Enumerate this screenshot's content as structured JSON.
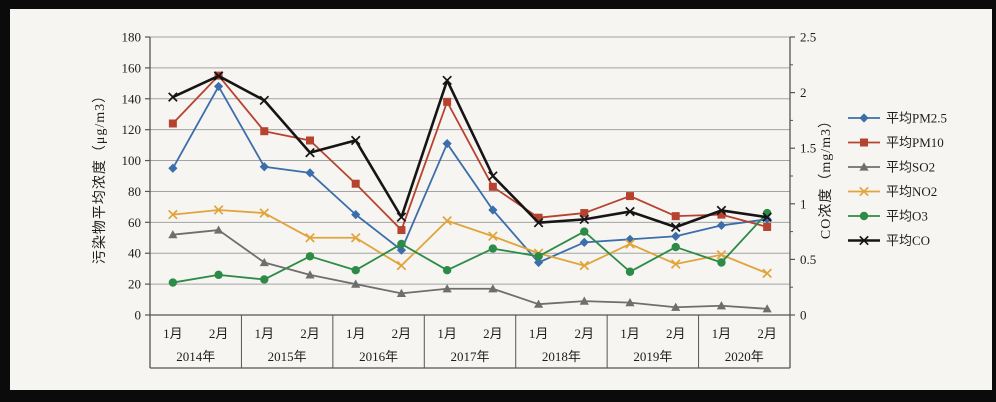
{
  "window": {
    "background_color": "#f7f5f1",
    "letterbox_color": "#0b0b0b"
  },
  "chart_data": {
    "type": "line",
    "title": "",
    "grid": true,
    "legend_position": "right",
    "y_left_axis": {
      "label": "污染物平均浓度（μg/m3）",
      "min": 0,
      "max": 180,
      "step": 20,
      "tick_labels": [
        "0",
        "20",
        "40",
        "60",
        "80",
        "100",
        "120",
        "140",
        "160",
        "180"
      ]
    },
    "y_right_axis": {
      "label": "CO浓度（mg/m3）",
      "min": 0,
      "max": 2.5,
      "step": 0.5,
      "tick_labels": [
        "0",
        "0.5",
        "1",
        "1.5",
        "2",
        "2.5"
      ]
    },
    "x_axis": {
      "month_labels": [
        "1月",
        "2月",
        "1月",
        "2月",
        "1月",
        "2月",
        "1月",
        "2月",
        "1月",
        "2月",
        "1月",
        "2月",
        "1月",
        "2月"
      ],
      "year_groups": [
        {
          "label": "2014年",
          "span": 2
        },
        {
          "label": "2015年",
          "span": 2
        },
        {
          "label": "2016年",
          "span": 2
        },
        {
          "label": "2017年",
          "span": 2
        },
        {
          "label": "2018年",
          "span": 2
        },
        {
          "label": "2019年",
          "span": 2
        },
        {
          "label": "2020年",
          "span": 2
        }
      ]
    },
    "series": [
      {
        "id": "pm25",
        "name": "平均PM2.5",
        "color": "#3c6eab",
        "marker": "diamond",
        "axis": "left",
        "line_width": 1.8,
        "values": [
          95,
          148,
          96,
          92,
          65,
          42,
          111,
          68,
          34,
          47,
          49,
          51,
          58,
          62
        ]
      },
      {
        "id": "pm10",
        "name": "平均PM10",
        "color": "#b6432f",
        "marker": "square",
        "axis": "left",
        "line_width": 1.8,
        "values": [
          124,
          155,
          119,
          113,
          85,
          55,
          138,
          83,
          63,
          66,
          77,
          64,
          65,
          57
        ]
      },
      {
        "id": "so2",
        "name": "平均SO2",
        "color": "#6e6e6e",
        "marker": "triangle",
        "axis": "left",
        "line_width": 1.8,
        "values": [
          52,
          55,
          34,
          26,
          20,
          14,
          17,
          17,
          7,
          9,
          8,
          5,
          6,
          4
        ]
      },
      {
        "id": "no2",
        "name": "平均NO2",
        "color": "#e1a43c",
        "marker": "x",
        "axis": "left",
        "line_width": 1.8,
        "values": [
          65,
          68,
          66,
          50,
          50,
          32,
          61,
          51,
          40,
          32,
          46,
          33,
          39,
          27
        ]
      },
      {
        "id": "o3",
        "name": "平均O3",
        "color": "#2c8b46",
        "marker": "circle",
        "axis": "left",
        "line_width": 1.8,
        "values": [
          21,
          26,
          23,
          38,
          29,
          46,
          29,
          43,
          38,
          54,
          28,
          44,
          34,
          66
        ]
      },
      {
        "id": "co",
        "name": "平均CO",
        "color": "#151515",
        "marker": "x",
        "axis": "right",
        "line_width": 2.6,
        "values": [
          1.96,
          2.15,
          1.93,
          1.46,
          1.57,
          0.88,
          2.11,
          1.25,
          0.83,
          0.86,
          0.93,
          0.79,
          0.94,
          0.88
        ]
      }
    ],
    "style": {
      "grid_color": "#a3a3a3",
      "axis_color": "#555555",
      "tick_font_size": 13,
      "label_font_size": 13,
      "axis_title_font_size": 14,
      "legend_font_size": 13
    }
  }
}
